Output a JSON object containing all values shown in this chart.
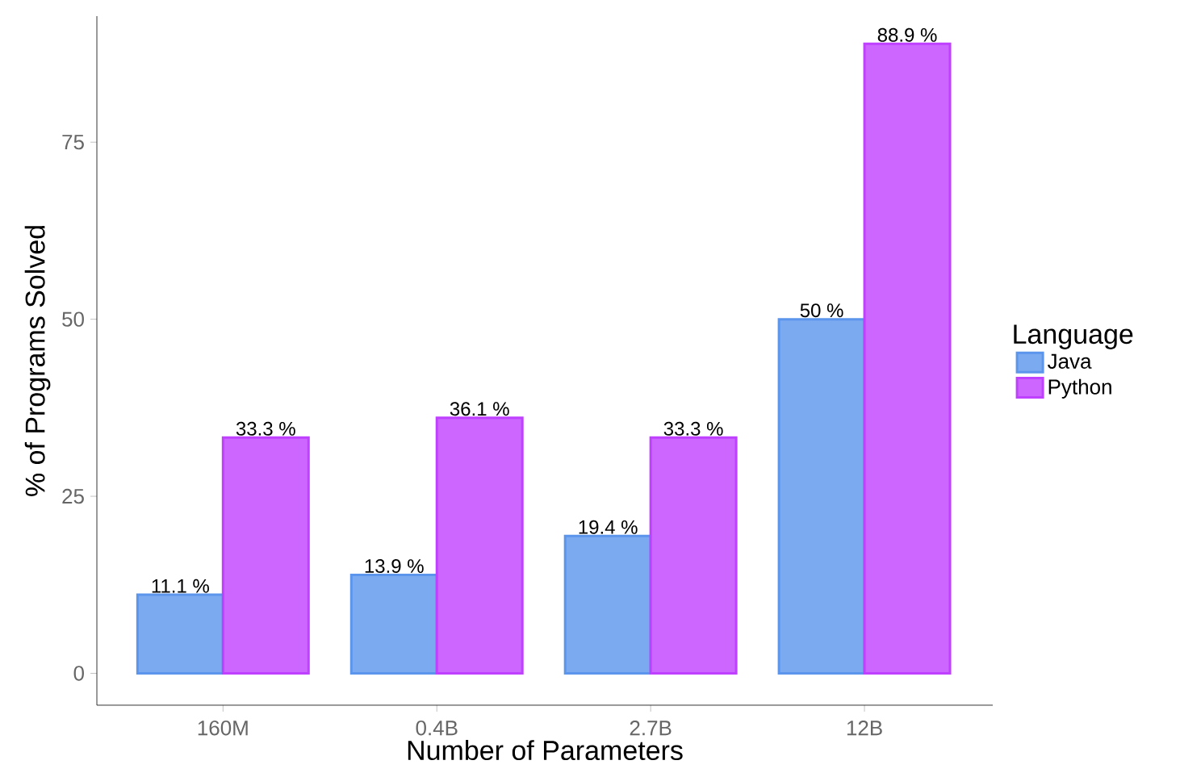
{
  "chart_data": {
    "type": "bar",
    "xlabel": "Number of Parameters",
    "ylabel": "% of Programs Solved",
    "legend_title": "Language",
    "categories": [
      "160M",
      "0.4B",
      "2.7B",
      "12B"
    ],
    "series": [
      {
        "name": "Java",
        "color": "#5b95ec",
        "values": [
          11.1,
          13.9,
          19.4,
          50
        ],
        "value_labels": [
          "11.1 %",
          "13.9 %",
          "19.4 %",
          "50 %"
        ]
      },
      {
        "name": "Python",
        "color": "#c040ff",
        "values": [
          33.3,
          36.1,
          33.3,
          88.9
        ],
        "value_labels": [
          "33.3 %",
          "36.1 %",
          "33.3 %",
          "88.9 %"
        ]
      }
    ],
    "ylim": [
      -4.5,
      92.8
    ],
    "yticks": [
      0,
      25,
      50,
      75
    ],
    "grid": false,
    "legend": "right"
  }
}
